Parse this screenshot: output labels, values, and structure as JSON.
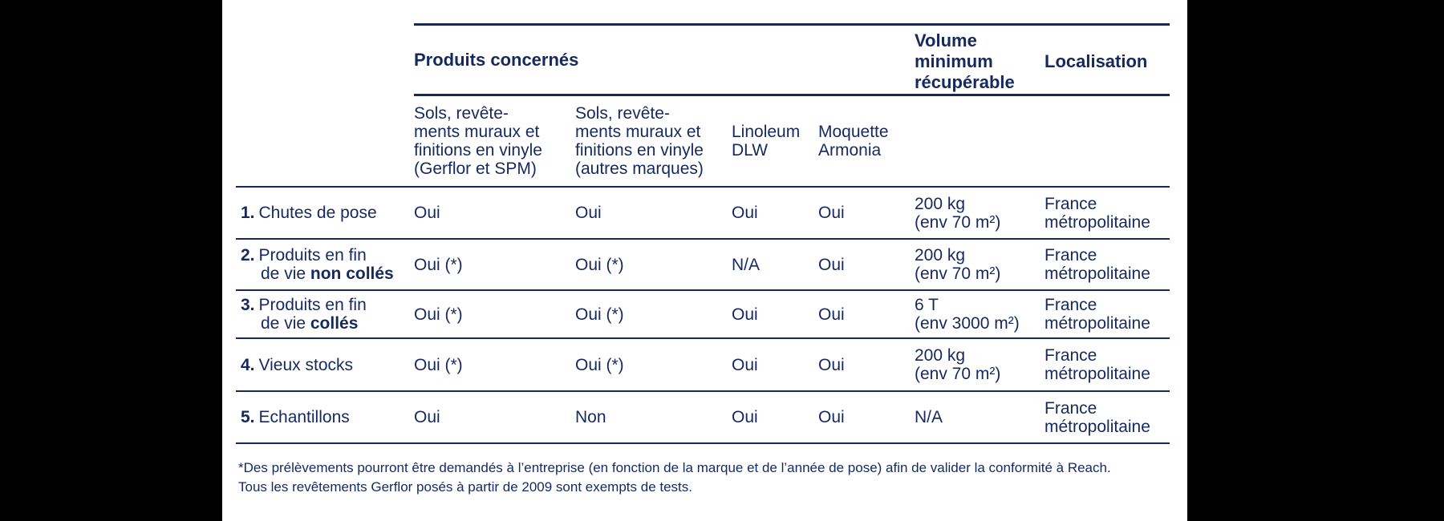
{
  "colors": {
    "ink": "#16295e",
    "panel_bg": "#ffffff",
    "page_bg": "#000000"
  },
  "table": {
    "header": {
      "produits": "Produits concernés",
      "volume": "Volume\nminimum\nrécupérable",
      "localisation": "Localisation"
    },
    "subheader": {
      "gerflor": "Sols, revête-\nments muraux et\nfinitions en vinyle\n(Gerflor et SPM)",
      "autres": "Sols, revête-\nments muraux et\nfinitions en vinyle\n(autres marques)",
      "linoleum": "Linoleum\nDLW",
      "moquette": "Moquette\nArmonia"
    },
    "rows": [
      {
        "num": "1.",
        "label": "Chutes de pose",
        "label2": "",
        "label2_bold": "",
        "gerflor": "Oui",
        "autres": "Oui",
        "linoleum": "Oui",
        "moquette": "Oui",
        "volume": "200 kg\n(env 70 m²)",
        "localisation": "France\nmétropolitaine"
      },
      {
        "num": "2.",
        "label": "Produits en fin",
        "label2": "de vie ",
        "label2_bold": "non collés",
        "gerflor": "Oui (*)",
        "autres": "Oui (*)",
        "linoleum": "N/A",
        "moquette": "Oui",
        "volume": "200 kg\n(env 70 m²)",
        "localisation": "France\nmétropolitaine"
      },
      {
        "num": "3.",
        "label": "Produits en fin",
        "label2": "de vie ",
        "label2_bold": "collés",
        "gerflor": "Oui (*)",
        "autres": "Oui (*)",
        "linoleum": "Oui",
        "moquette": "Oui",
        "volume": "6 T\n(env 3000 m²)",
        "localisation": "France\nmétropolitaine"
      },
      {
        "num": "4.",
        "label": "Vieux stocks",
        "label2": "",
        "label2_bold": "",
        "gerflor": "Oui (*)",
        "autres": "Oui (*)",
        "linoleum": "Oui",
        "moquette": "Oui",
        "volume": "200 kg\n(env 70 m²)",
        "localisation": "France\nmétropolitaine"
      },
      {
        "num": "5.",
        "label": "Echantillons",
        "label2": "",
        "label2_bold": "",
        "gerflor": "Oui",
        "autres": "Non",
        "linoleum": "Oui",
        "moquette": "Oui",
        "volume": "N/A",
        "localisation": "France\nmétropolitaine"
      }
    ]
  },
  "footnotes": {
    "line1": "*Des prélèvements pourront être demandés à l’entreprise (en fonction de la marque et de l’année de pose) afin de valider la conformité à Reach.",
    "line2": "Tous les revêtements Gerflor posés à partir de 2009 sont exempts de tests."
  }
}
